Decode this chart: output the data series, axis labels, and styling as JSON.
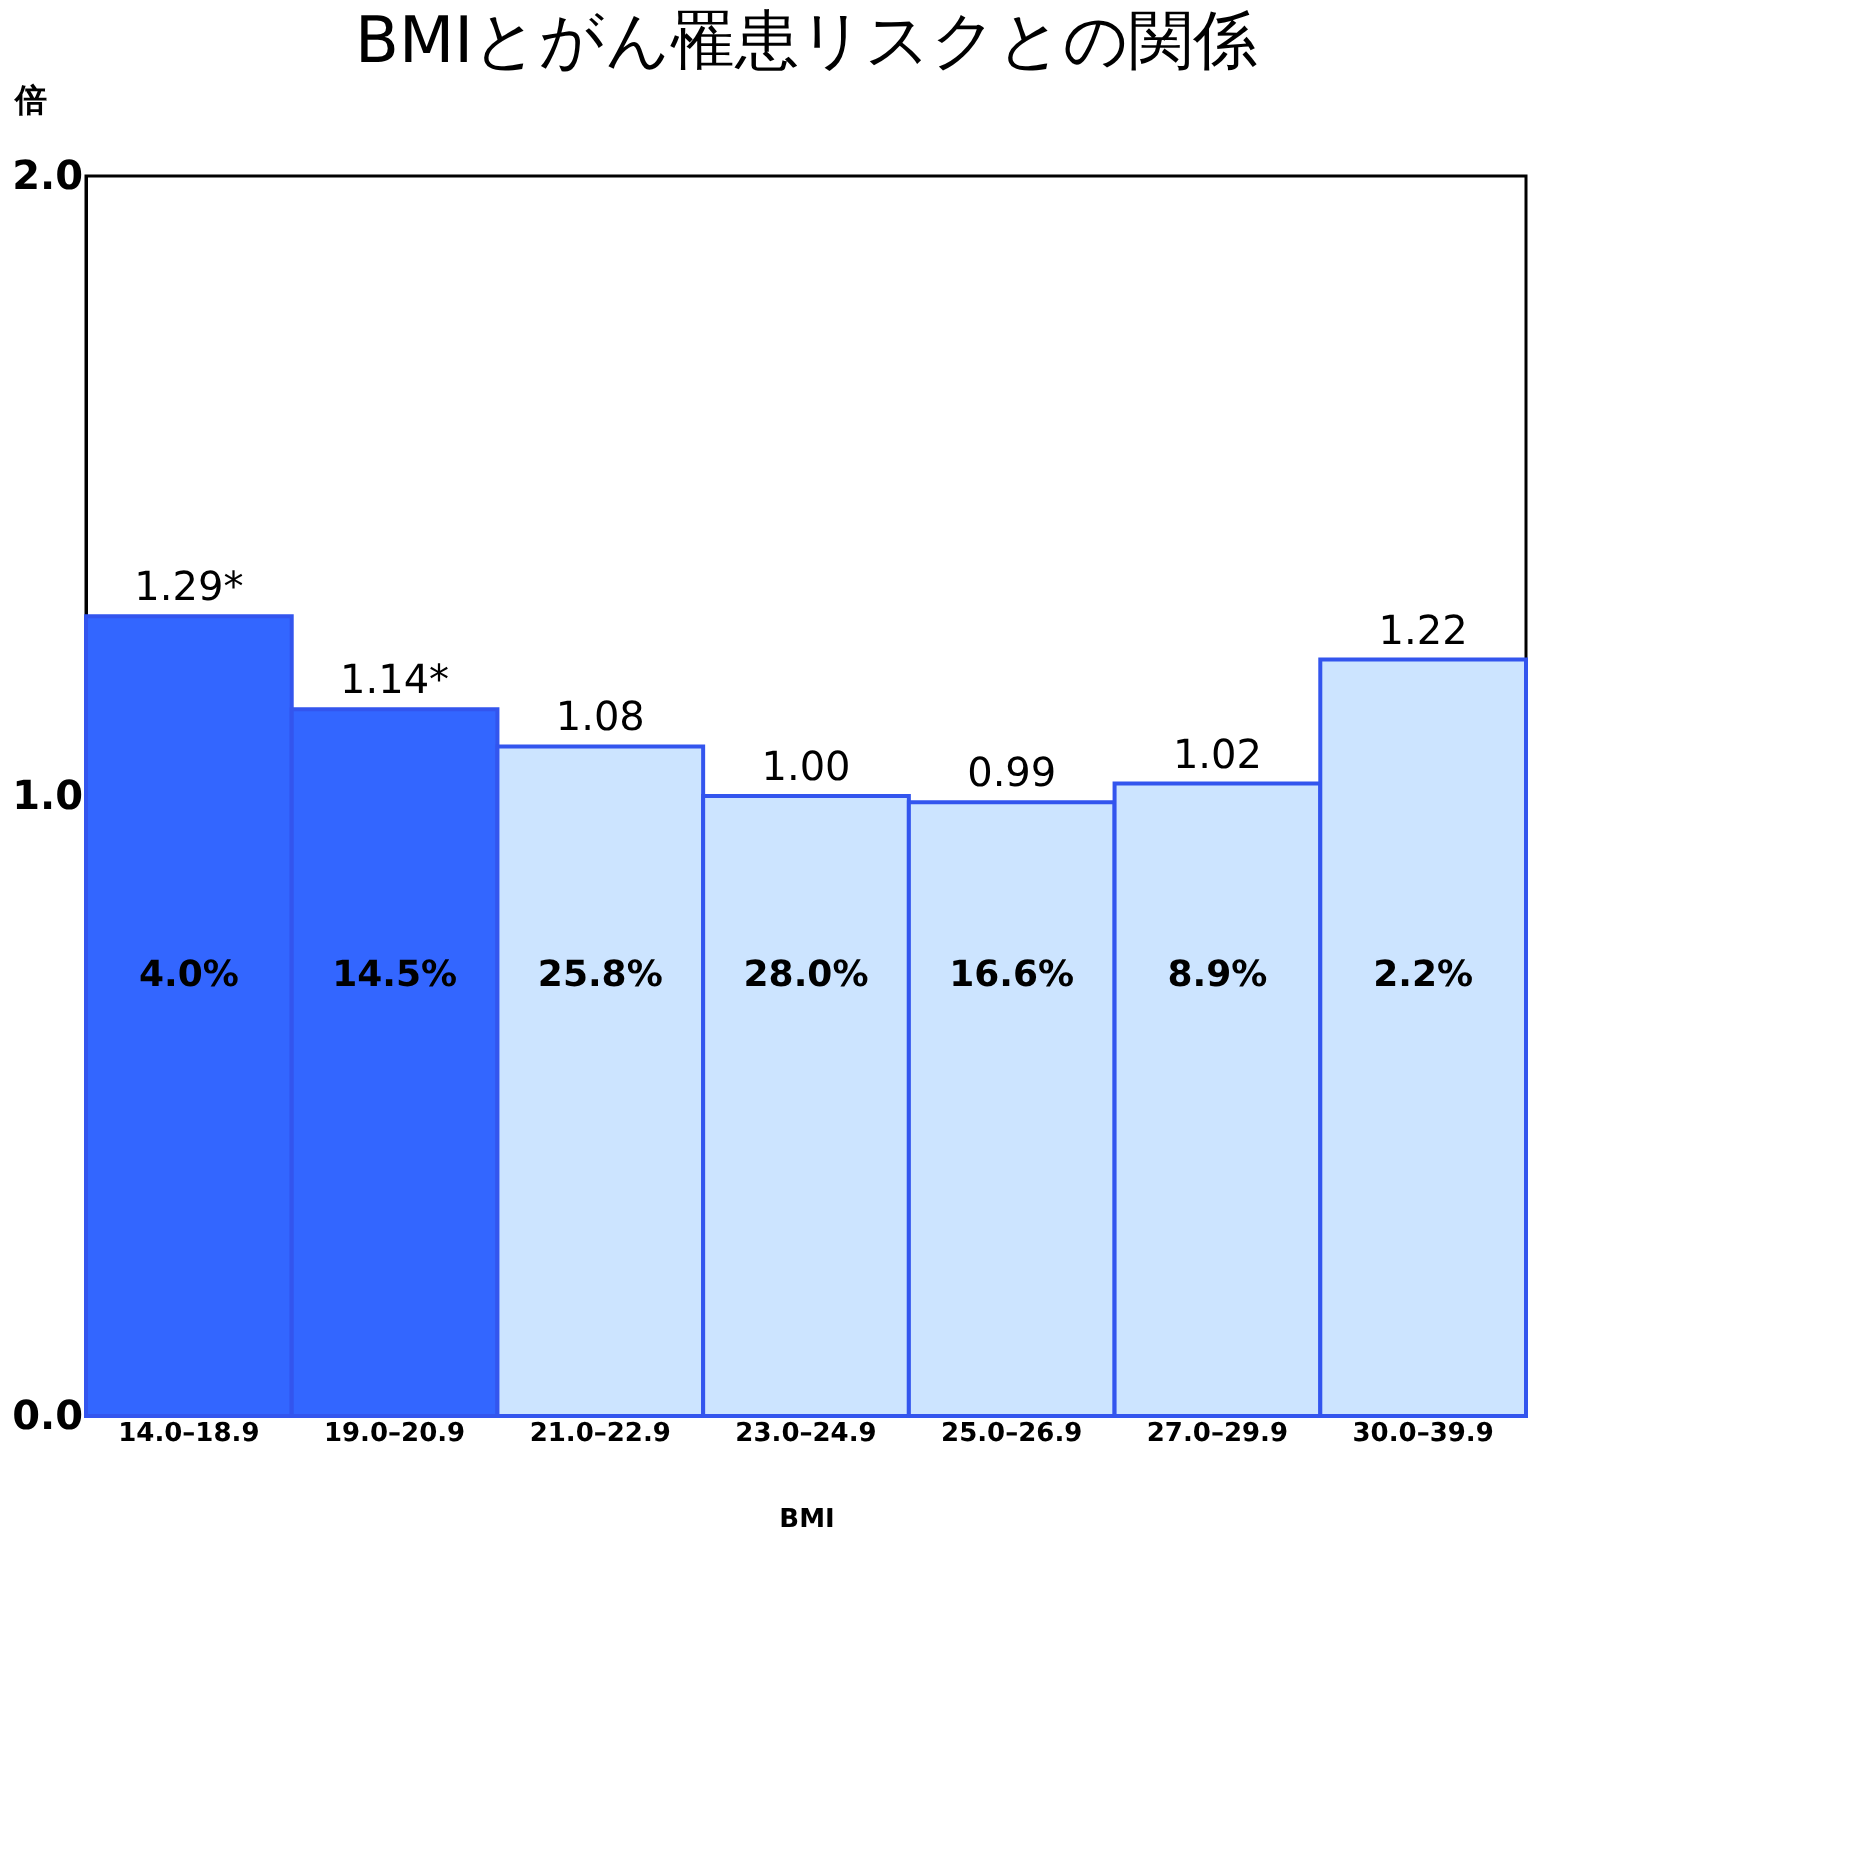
{
  "chart_data": {
    "type": "bar",
    "title": "BMIとがん罹患リスクとの関係",
    "xlabel": "BMI",
    "ylabel": "倍",
    "categories": [
      "14.0–18.9",
      "19.0–20.9",
      "21.0–22.9",
      "23.0–24.9",
      "25.0–26.9",
      "27.0–29.9",
      "30.0–39.9"
    ],
    "values": [
      1.29,
      1.14,
      1.08,
      1.0,
      0.99,
      1.02,
      1.22
    ],
    "colors": [
      "#3366ff",
      "#3366ff",
      "#cce4ff",
      "#cce4ff",
      "#cce4ff",
      "#cce4ff",
      "#cce4ff"
    ],
    "value_labels": [
      "1.29*",
      "1.14*",
      "1.08",
      "1.00",
      "0.99",
      "1.02",
      "1.22"
    ],
    "ylim": [
      0,
      2
    ],
    "yticks": [
      {
        "value": 0,
        "label": "0.0"
      },
      {
        "value": 1,
        "label": "1.0"
      },
      {
        "value": 2,
        "label": "2.0"
      }
    ],
    "grid": false,
    "annotations": [
      "4.0%",
      "14.5%",
      "25.8%",
      "28.0%",
      "16.6%",
      "8.9%",
      "2.2%"
    ]
  }
}
